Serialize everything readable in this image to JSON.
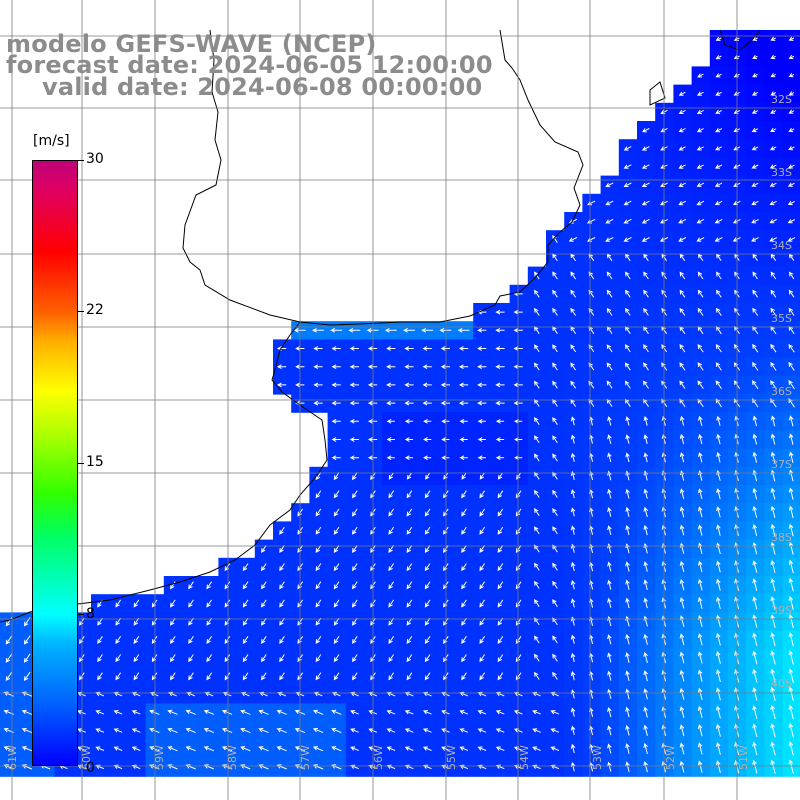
{
  "title": {
    "line1": "modelo GEFS-WAVE (NCEP)",
    "line2": "forecast date: 2024-06-05 12:00:00",
    "line3": "valid date: 2024-06-08 00:00:00"
  },
  "colorbar": {
    "unit": "[m/s]",
    "ticks": [
      "30",
      "22",
      "15",
      "8",
      "0"
    ],
    "tick_values": [
      30,
      22,
      15,
      8,
      0
    ],
    "min": 0,
    "max": 30,
    "colors": [
      "#0000ff",
      "#00b4ff",
      "#00ffff",
      "#30ff00",
      "#ffff00",
      "#ff6000",
      "#ff0000",
      "#c0007a"
    ]
  },
  "map": {
    "lat_labels": [
      "32S",
      "33S",
      "34S",
      "35S",
      "36S",
      "37S",
      "38S",
      "39S",
      "40S"
    ],
    "lon_labels": [
      "61W",
      "60W",
      "59W",
      "58W",
      "57W",
      "56W",
      "55W",
      "54W",
      "53W",
      "52W",
      "51W"
    ],
    "land_color": "#ffffff",
    "ocean_base_color": "#0a2cff",
    "arrow_color": "#ffffff",
    "grid_color": "#7a7a7a"
  }
}
